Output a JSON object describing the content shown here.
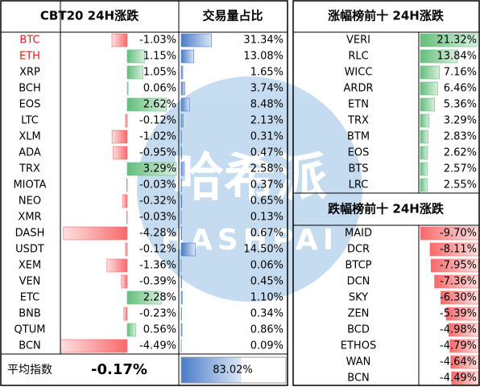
{
  "left": {
    "title": "CBT20 24H涨跌",
    "volume_title": "交易量占比",
    "rows": [
      {
        "name": "BTC",
        "name_color": "#e02020",
        "change": {
          "value": -1.03,
          "label": "-1.03%"
        },
        "volume": {
          "value": 31.34,
          "label": "31.34%"
        }
      },
      {
        "name": "ETH",
        "name_color": "#e02020",
        "change": {
          "value": 1.15,
          "label": "1.15%"
        },
        "volume": {
          "value": 13.08,
          "label": "13.08%"
        }
      },
      {
        "name": "XRP",
        "change": {
          "value": 1.05,
          "label": "1.05%"
        },
        "volume": {
          "value": 1.65,
          "label": "1.65%"
        }
      },
      {
        "name": "BCH",
        "change": {
          "value": 0.06,
          "label": "0.06%"
        },
        "volume": {
          "value": 3.74,
          "label": "3.74%"
        }
      },
      {
        "name": "EOS",
        "change": {
          "value": 2.62,
          "label": "2.62%"
        },
        "volume": {
          "value": 8.48,
          "label": "8.48%"
        }
      },
      {
        "name": "LTC",
        "change": {
          "value": -0.12,
          "label": "-0.12%"
        },
        "volume": {
          "value": 2.13,
          "label": "2.13%"
        }
      },
      {
        "name": "XLM",
        "change": {
          "value": -1.02,
          "label": "-1.02%"
        },
        "volume": {
          "value": 0.31,
          "label": "0.31%"
        }
      },
      {
        "name": "ADA",
        "change": {
          "value": -0.95,
          "label": "-0.95%"
        },
        "volume": {
          "value": 0.47,
          "label": "0.47%"
        }
      },
      {
        "name": "TRX",
        "change": {
          "value": 3.29,
          "label": "3.29%"
        },
        "volume": {
          "value": 2.58,
          "label": "2.58%"
        }
      },
      {
        "name": "MIOTA",
        "change": {
          "value": -0.03,
          "label": "-0.03%"
        },
        "volume": {
          "value": 0.37,
          "label": "0.37%"
        }
      },
      {
        "name": "NEO",
        "change": {
          "value": -0.32,
          "label": "-0.32%"
        },
        "volume": {
          "value": 0.65,
          "label": "0.65%"
        }
      },
      {
        "name": "XMR",
        "change": {
          "value": -0.03,
          "label": "-0.03%"
        },
        "volume": {
          "value": 0.13,
          "label": "0.13%"
        }
      },
      {
        "name": "DASH",
        "change": {
          "value": -4.28,
          "label": "-4.28%"
        },
        "volume": {
          "value": 0.67,
          "label": "0.67%"
        }
      },
      {
        "name": "USDT",
        "change": {
          "value": -0.12,
          "label": "-0.12%"
        },
        "volume": {
          "value": 14.5,
          "label": "14.50%"
        }
      },
      {
        "name": "XEM",
        "change": {
          "value": -1.36,
          "label": "-1.36%"
        },
        "volume": {
          "value": 0.06,
          "label": "0.06%"
        }
      },
      {
        "name": "VEN",
        "change": {
          "value": -0.39,
          "label": "-0.39%"
        },
        "volume": {
          "value": 0.45,
          "label": "0.45%"
        }
      },
      {
        "name": "ETC",
        "change": {
          "value": 2.28,
          "label": "2.28%"
        },
        "volume": {
          "value": 1.1,
          "label": "1.10%"
        }
      },
      {
        "name": "BNB",
        "change": {
          "value": -0.23,
          "label": "-0.23%"
        },
        "volume": {
          "value": 0.34,
          "label": "0.34%"
        }
      },
      {
        "name": "QTUM",
        "change": {
          "value": 0.56,
          "label": "0.56%"
        },
        "volume": {
          "value": 0.86,
          "label": "0.86%"
        }
      },
      {
        "name": "BCN",
        "change": {
          "value": -4.49,
          "label": "-4.49%"
        },
        "volume": {
          "value": 0.09,
          "label": "0.09%"
        }
      }
    ],
    "footer": {
      "label": "平均指数",
      "change": {
        "value": -0.17,
        "label": "-0.17%"
      },
      "volume": {
        "value": 83.02,
        "label": "83.02%"
      }
    }
  },
  "gainers": {
    "title": "涨幅榜前十 24H涨跌",
    "rows": [
      {
        "name": "VERI",
        "change": {
          "value": 21.32,
          "label": "21.32%"
        }
      },
      {
        "name": "RLC",
        "change": {
          "value": 13.84,
          "label": "13.84%"
        }
      },
      {
        "name": "WICC",
        "change": {
          "value": 7.16,
          "label": "7.16%"
        }
      },
      {
        "name": "ARDR",
        "change": {
          "value": 6.46,
          "label": "6.46%"
        }
      },
      {
        "name": "ETN",
        "change": {
          "value": 5.36,
          "label": "5.36%"
        }
      },
      {
        "name": "TRX",
        "change": {
          "value": 3.29,
          "label": "3.29%"
        }
      },
      {
        "name": "BTM",
        "change": {
          "value": 2.83,
          "label": "2.83%"
        }
      },
      {
        "name": "EOS",
        "change": {
          "value": 2.62,
          "label": "2.62%"
        }
      },
      {
        "name": "BTS",
        "change": {
          "value": 2.57,
          "label": "2.57%"
        }
      },
      {
        "name": "LRC",
        "change": {
          "value": 2.55,
          "label": "2.55%"
        }
      }
    ]
  },
  "losers": {
    "title": "跌幅榜前十 24H涨跌",
    "rows": [
      {
        "name": "MAID",
        "change": {
          "value": -9.7,
          "label": "-9.70%"
        }
      },
      {
        "name": "DCR",
        "change": {
          "value": -8.11,
          "label": "-8.11%"
        }
      },
      {
        "name": "BTCP",
        "change": {
          "value": -7.95,
          "label": "-7.95%"
        }
      },
      {
        "name": "DCN",
        "change": {
          "value": -7.36,
          "label": "-7.36%"
        }
      },
      {
        "name": "SKY",
        "change": {
          "value": -6.3,
          "label": "-6.30%"
        }
      },
      {
        "name": "ZEN",
        "change": {
          "value": -5.39,
          "label": "-5.39%"
        }
      },
      {
        "name": "BCD",
        "change": {
          "value": -4.98,
          "label": "-4.98%"
        }
      },
      {
        "name": "ETHOS",
        "change": {
          "value": -4.79,
          "label": "-4.79%"
        }
      },
      {
        "name": "WAN",
        "change": {
          "value": -4.64,
          "label": "-4.64%"
        }
      },
      {
        "name": "BCN",
        "change": {
          "value": -4.49,
          "label": "-4.49%"
        }
      }
    ]
  },
  "watermark": {
    "text": "哈希派",
    "subtext": "HASHPAI"
  }
}
